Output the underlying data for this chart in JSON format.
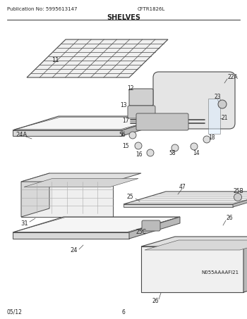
{
  "title": "SHELVES",
  "pub_no": "Publication No: 5995613147",
  "model": "CFTR1826L",
  "page": "6",
  "date": "05/12",
  "image_ref": "N055AAAAFI21",
  "bg_color": "#ffffff",
  "line_color": "#4a4a4a",
  "text_color": "#222222",
  "gray_light": "#f0f0f0",
  "gray_mid": "#d8d8d8",
  "gray_dark": "#b8b8b8"
}
